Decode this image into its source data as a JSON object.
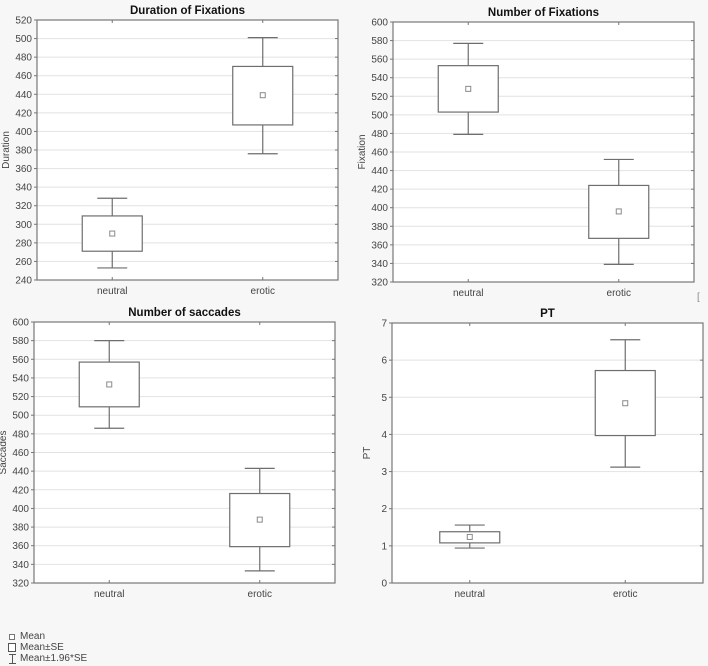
{
  "chart_data": [
    {
      "type": "box",
      "title": "Duration of Fixations",
      "xlabel": "",
      "ylabel": "Duration",
      "categories": [
        "neutral",
        "erotic"
      ],
      "ylim": [
        240,
        520
      ],
      "yticks": [
        240,
        260,
        280,
        300,
        320,
        340,
        360,
        380,
        400,
        420,
        440,
        460,
        480,
        500,
        520
      ],
      "grid": true,
      "series": [
        {
          "name": "Mean",
          "values": [
            290,
            439
          ]
        },
        {
          "name": "Mean+SE",
          "values": [
            309,
            470
          ]
        },
        {
          "name": "Mean-SE",
          "values": [
            271,
            407
          ]
        },
        {
          "name": "Mean+1.96*SE",
          "values": [
            328,
            501
          ]
        },
        {
          "name": "Mean-1.96*SE",
          "values": [
            253,
            376
          ]
        }
      ]
    },
    {
      "type": "box",
      "title": "Number of Fixations",
      "xlabel": "",
      "ylabel": "Fixation",
      "categories": [
        "neutral",
        "erotic"
      ],
      "ylim": [
        320,
        600
      ],
      "yticks": [
        320,
        340,
        360,
        380,
        400,
        420,
        440,
        460,
        480,
        500,
        520,
        540,
        560,
        580,
        600
      ],
      "grid": true,
      "series": [
        {
          "name": "Mean",
          "values": [
            528,
            396
          ]
        },
        {
          "name": "Mean+SE",
          "values": [
            553,
            424
          ]
        },
        {
          "name": "Mean-SE",
          "values": [
            503,
            367
          ]
        },
        {
          "name": "Mean+1.96*SE",
          "values": [
            577,
            452
          ]
        },
        {
          "name": "Mean-1.96*SE",
          "values": [
            479,
            339
          ]
        }
      ]
    },
    {
      "type": "box",
      "title": "Number of saccades",
      "xlabel": "",
      "ylabel": "Saccades",
      "categories": [
        "neutral",
        "erotic"
      ],
      "ylim": [
        320,
        600
      ],
      "yticks": [
        320,
        340,
        360,
        380,
        400,
        420,
        440,
        460,
        480,
        500,
        520,
        540,
        560,
        580,
        600
      ],
      "grid": true,
      "series": [
        {
          "name": "Mean",
          "values": [
            533,
            388
          ]
        },
        {
          "name": "Mean+SE",
          "values": [
            557,
            416
          ]
        },
        {
          "name": "Mean-SE",
          "values": [
            509,
            359
          ]
        },
        {
          "name": "Mean+1.96*SE",
          "values": [
            580,
            443
          ]
        },
        {
          "name": "Mean-1.96*SE",
          "values": [
            486,
            333
          ]
        }
      ]
    },
    {
      "type": "box",
      "title": "PT",
      "xlabel": "",
      "ylabel": "PT",
      "categories": [
        "neutral",
        "erotic"
      ],
      "ylim": [
        0,
        7
      ],
      "yticks": [
        0,
        1,
        2,
        3,
        4,
        5,
        6,
        7
      ],
      "grid": true,
      "series": [
        {
          "name": "Mean",
          "values": [
            1.24,
            4.84
          ]
        },
        {
          "name": "Mean+SE",
          "values": [
            1.38,
            5.72
          ]
        },
        {
          "name": "Mean-SE",
          "values": [
            1.08,
            3.97
          ]
        },
        {
          "name": "Mean+1.96*SE",
          "values": [
            1.56,
            6.55
          ]
        },
        {
          "name": "Mean-1.96*SE",
          "values": [
            0.94,
            3.12
          ]
        }
      ]
    }
  ],
  "legend": {
    "position": "bottom-left",
    "items": [
      {
        "symbol": "small-square",
        "label": "Mean"
      },
      {
        "symbol": "box",
        "label": "Mean±SE"
      },
      {
        "symbol": "whisker",
        "label": "Mean±1.96*SE"
      }
    ]
  },
  "style": {
    "frame_color": "#777777",
    "grid_color": "#e2e2e2",
    "box_color": "#6e6e6e",
    "mean_color": "#8a8a8a",
    "plot_bg": "#ffffff"
  }
}
